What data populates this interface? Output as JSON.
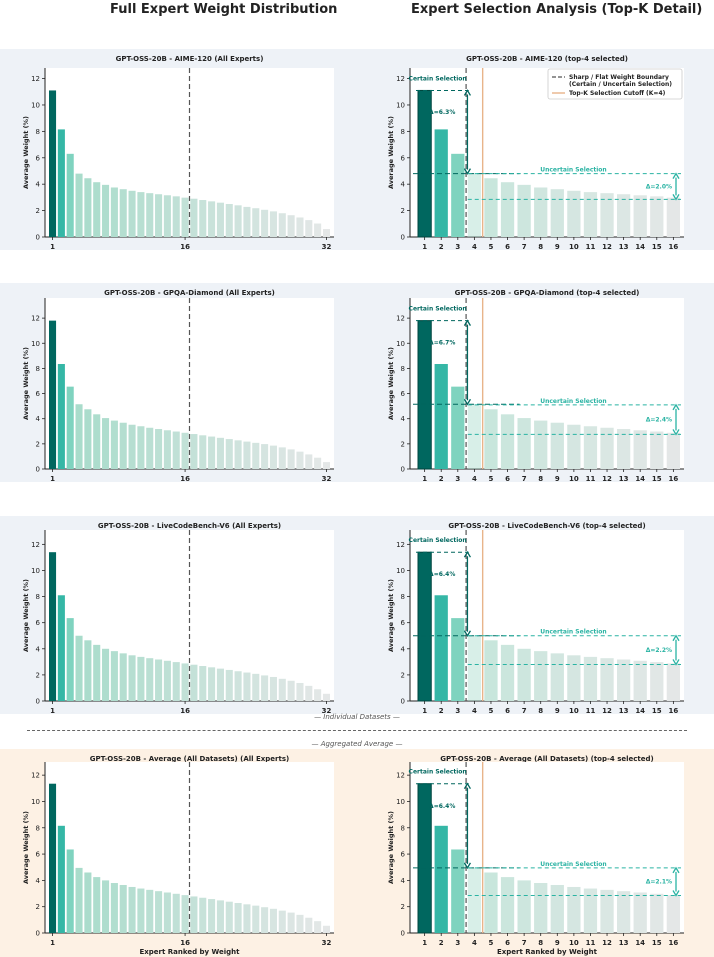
{
  "headers": {
    "left": "Full Expert Weight Distribution",
    "right": "Expert Selection Analysis (Top-K Detail)"
  },
  "labels": {
    "individual": "— Individual Datasets —",
    "aggregated": "— Aggregated Average —",
    "ylabel": "Average Weight (%)",
    "xlabel": "Expert Ranked by Weight",
    "certain": "Certain Selection",
    "uncertain": "Uncertain Selection",
    "legend_boundary_1": "Sharp / Flat Weight Boundary",
    "legend_boundary_2": "(Certain / Uncertain Selection)",
    "legend_cutoff": "Top-K Selection Cutoff (K=4)"
  },
  "colors": {
    "background_individual": "#eef2f7",
    "background_aggregated": "#fdf1e4",
    "dark_teal": "#00675f",
    "teal": "#35b7a6",
    "light_teal": "#7fd3bf",
    "annotation": "#2ab3a3",
    "cutoff_line": "#e8b48a",
    "boundary_line": "#555555"
  },
  "chart_data": [
    {
      "type": "bar",
      "dataset": "AIME-120",
      "title_full": "GPT-OSS-20B - AIME-120 (All Experts)",
      "title_topk": "GPT-OSS-20B - AIME-120 (top-4 selected)",
      "ylabel": "Average Weight (%)",
      "xlabel": "",
      "ylim": [
        0,
        12.8
      ],
      "yticks": [
        0,
        2,
        4,
        6,
        8,
        10,
        12
      ],
      "xticks_full": [
        "1",
        "16",
        "32"
      ],
      "values": [
        11.1,
        8.15,
        6.3,
        4.8,
        4.45,
        4.15,
        3.95,
        3.75,
        3.62,
        3.5,
        3.4,
        3.32,
        3.24,
        3.16,
        3.08,
        2.98,
        2.9,
        2.8,
        2.7,
        2.6,
        2.5,
        2.4,
        2.28,
        2.18,
        2.06,
        1.94,
        1.8,
        1.65,
        1.48,
        1.28,
        1.02,
        0.6
      ],
      "certain_delta": "Δ=6.3%",
      "uncertain_delta": "Δ=2.0%",
      "uncertain_top": 4.8,
      "uncertain_bottom": 2.85,
      "show_legend": true
    },
    {
      "type": "bar",
      "dataset": "GPQA-Diamond",
      "title_full": "GPT-OSS-20B - GPQA-Diamond (All Experts)",
      "title_topk": "GPT-OSS-20B - GPQA-Diamond (top-4 selected)",
      "ylabel": "Average Weight (%)",
      "xlabel": "",
      "ylim": [
        0,
        13.6
      ],
      "yticks": [
        0,
        2,
        4,
        6,
        8,
        10,
        12
      ],
      "xticks_full": [
        "1",
        "16",
        "32"
      ],
      "values": [
        11.8,
        8.35,
        6.55,
        5.15,
        4.75,
        4.35,
        4.05,
        3.85,
        3.68,
        3.52,
        3.4,
        3.28,
        3.18,
        3.08,
        2.98,
        2.88,
        2.78,
        2.68,
        2.58,
        2.48,
        2.38,
        2.28,
        2.18,
        2.08,
        1.98,
        1.86,
        1.72,
        1.56,
        1.38,
        1.16,
        0.9,
        0.55
      ],
      "certain_delta": "Δ=6.7%",
      "uncertain_delta": "Δ=2.4%",
      "uncertain_top": 5.1,
      "uncertain_bottom": 2.75,
      "show_legend": false
    },
    {
      "type": "bar",
      "dataset": "LiveCodeBench-V6",
      "title_full": "GPT-OSS-20B - LiveCodeBench-V6 (All Experts)",
      "title_topk": "GPT-OSS-20B - LiveCodeBench-V6 (top-4 selected)",
      "ylabel": "Average Weight (%)",
      "xlabel": "",
      "ylim": [
        0,
        13.1
      ],
      "yticks": [
        0,
        2,
        4,
        6,
        8,
        10,
        12
      ],
      "xticks_full": [
        "1",
        "16",
        "32"
      ],
      "values": [
        11.4,
        8.1,
        6.35,
        5.0,
        4.65,
        4.3,
        4.0,
        3.82,
        3.65,
        3.5,
        3.38,
        3.28,
        3.18,
        3.08,
        2.98,
        2.88,
        2.78,
        2.68,
        2.58,
        2.48,
        2.38,
        2.28,
        2.18,
        2.08,
        1.96,
        1.84,
        1.7,
        1.55,
        1.38,
        1.16,
        0.9,
        0.55
      ],
      "certain_delta": "Δ=6.4%",
      "uncertain_delta": "Δ=2.2%",
      "uncertain_top": 5.0,
      "uncertain_bottom": 2.8,
      "show_legend": false
    },
    {
      "type": "bar",
      "dataset": "Average (All Datasets)",
      "title_full": "GPT-OSS-20B - Average (All Datasets) (All Experts)",
      "title_topk": "GPT-OSS-20B - Average (All Datasets) (top-4 selected)",
      "ylabel": "Average Weight (%)",
      "xlabel": "Expert Ranked by Weight",
      "ylim": [
        0,
        13.0
      ],
      "yticks": [
        0,
        2,
        4,
        6,
        8,
        10,
        12
      ],
      "xticks_full": [
        "1",
        "16",
        "32"
      ],
      "values": [
        11.35,
        8.15,
        6.35,
        4.95,
        4.6,
        4.25,
        4.0,
        3.8,
        3.65,
        3.5,
        3.38,
        3.28,
        3.18,
        3.08,
        2.98,
        2.88,
        2.78,
        2.68,
        2.58,
        2.48,
        2.38,
        2.28,
        2.18,
        2.08,
        1.96,
        1.84,
        1.7,
        1.55,
        1.38,
        1.16,
        0.9,
        0.55
      ],
      "certain_delta": "Δ=6.4%",
      "uncertain_delta": "Δ=2.1%",
      "uncertain_top": 4.95,
      "uncertain_bottom": 2.85,
      "show_legend": false
    }
  ]
}
